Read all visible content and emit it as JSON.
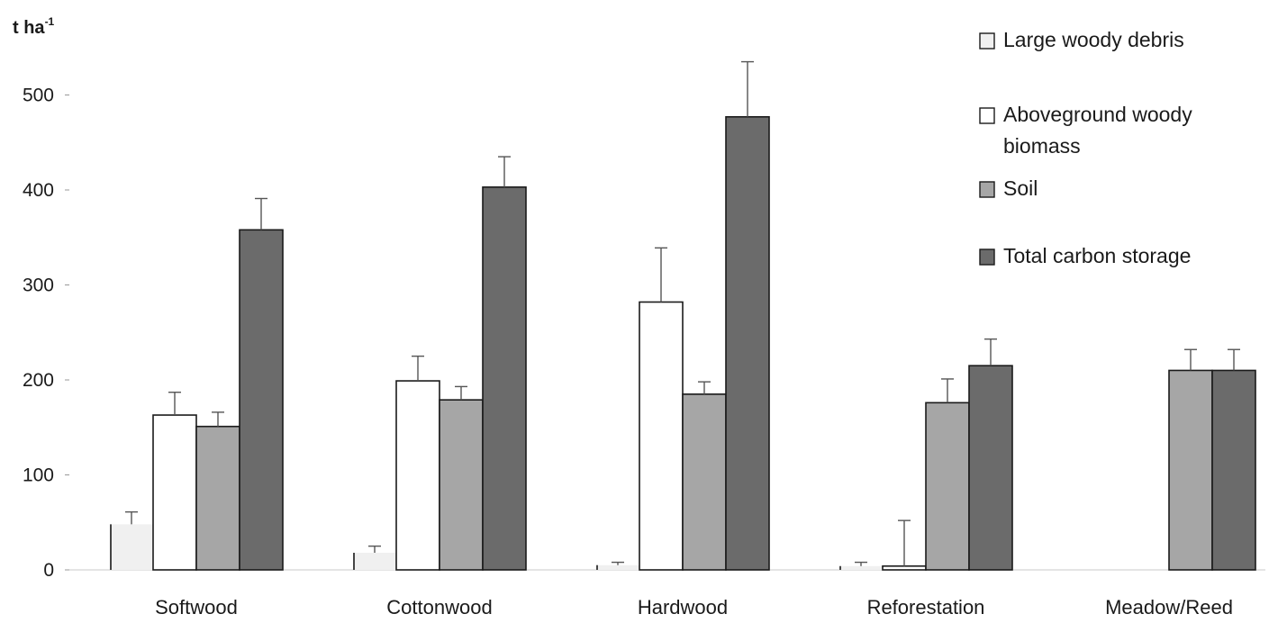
{
  "chart_data": {
    "type": "bar",
    "y_unit": "t ha",
    "y_unit_sup": "-1",
    "ylim": [
      0,
      550
    ],
    "yticks": [
      0,
      100,
      200,
      300,
      400,
      500
    ],
    "grid": false,
    "legend_position": "top-right",
    "categories": [
      "Softwood",
      "Cottonwood",
      "Hardwood",
      "Reforestation",
      "Meadow/Reed"
    ],
    "series": [
      {
        "name": "Large woody debris",
        "color": "#f0f0f0",
        "values": [
          48,
          18,
          5,
          4,
          0
        ],
        "errors": [
          13,
          7,
          3,
          4,
          0
        ]
      },
      {
        "name": "Aboveground woody biomass",
        "line2": "biomass",
        "color": "#ffffff",
        "values": [
          163,
          199,
          282,
          4,
          0
        ],
        "errors": [
          24,
          26,
          57,
          48,
          0
        ]
      },
      {
        "name": "Soil",
        "color": "#a6a6a6",
        "values": [
          151,
          179,
          185,
          176,
          210
        ],
        "errors": [
          15,
          14,
          13,
          25,
          22
        ]
      },
      {
        "name": "Total carbon storage",
        "color": "#6b6b6b",
        "values": [
          358,
          403,
          477,
          215,
          210
        ],
        "errors": [
          33,
          32,
          58,
          28,
          22
        ]
      }
    ]
  }
}
